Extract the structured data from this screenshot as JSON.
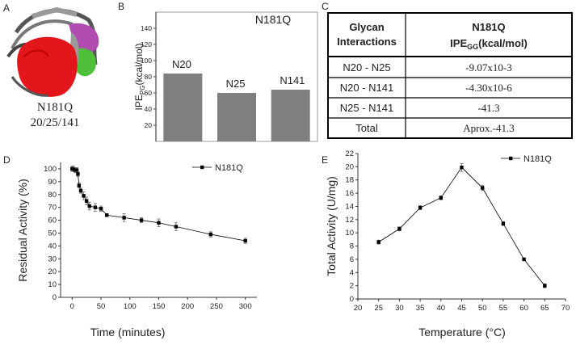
{
  "figure_a": {
    "panel_label": "A",
    "label_line1": "N181Q",
    "label_line2": "20/25/141"
  },
  "table_c": {
    "panel_label": "C",
    "header": {
      "col1_line1": "Glycan",
      "col1_line2": "Interactions",
      "col2_title": "N181Q",
      "col2_main": "IPE",
      "col2_sub": "GG",
      "col2_unit": "(kcal/mol)"
    },
    "rows": [
      [
        "N20 - N25",
        "-9.07x10-3"
      ],
      [
        "N20 - N141",
        "-4.30x10-6"
      ],
      [
        "N25 - N141",
        "-41.3"
      ],
      [
        "Total",
        "Aprox.-41.3"
      ]
    ]
  },
  "chart_data": [
    {
      "type": "bar",
      "panel_label": "B",
      "title": "N181Q",
      "y_label": {
        "main": "IPE",
        "sub": "PG",
        "unit": "(kcal/mol)"
      },
      "categories": [
        "N20",
        "N25",
        "N141"
      ],
      "values": [
        84,
        60,
        64
      ],
      "color": "#7f7f7f",
      "ylim": [
        0,
        160
      ],
      "yticks": [
        20,
        40,
        60,
        80,
        100,
        120,
        140
      ]
    },
    {
      "type": "line",
      "panel_label": "D",
      "x_label": "Time (minutes)",
      "y_label": "Residual Activity (%)",
      "x": [
        0,
        2,
        5,
        8,
        10,
        12,
        15,
        20,
        25,
        30,
        40,
        50,
        60,
        90,
        120,
        150,
        180,
        240,
        300
      ],
      "series": [
        {
          "name": "N181Q",
          "color": "#000000",
          "values": [
            100,
            100,
            99,
            99,
            96,
            87,
            83,
            79,
            75,
            71,
            70,
            69,
            64,
            62,
            60,
            58,
            55,
            49,
            44
          ],
          "errors": [
            2,
            2,
            2,
            2,
            2,
            2,
            2,
            3,
            3,
            3,
            3,
            2,
            1,
            3,
            2,
            3,
            3,
            2,
            2
          ]
        }
      ],
      "xlim": [
        -20,
        320
      ],
      "xticks": [
        0,
        50,
        100,
        150,
        200,
        250,
        300
      ],
      "ylim": [
        0,
        105
      ],
      "yticks": [
        0,
        10,
        20,
        30,
        40,
        50,
        60,
        70,
        80,
        90,
        100
      ],
      "legend": "upper right"
    },
    {
      "type": "line",
      "panel_label": "E",
      "x_label": "Temperature (°C)",
      "y_label": "Total Activity (U/mg)",
      "x": [
        25,
        30,
        35,
        40,
        45,
        50,
        55,
        60,
        65
      ],
      "series": [
        {
          "name": "N181Q",
          "color": "#000000",
          "values": [
            8.6,
            10.6,
            13.8,
            15.3,
            19.9,
            16.8,
            11.4,
            6.0,
            2.0
          ],
          "errors": [
            0.3,
            0.3,
            0.3,
            0.3,
            0.6,
            0.4,
            0.3,
            0.2,
            0.3
          ]
        }
      ],
      "xlim": [
        20,
        70
      ],
      "xticks": [
        20,
        25,
        30,
        35,
        40,
        45,
        50,
        55,
        60,
        65,
        70
      ],
      "ylim": [
        0,
        22
      ],
      "yticks": [
        0,
        2,
        4,
        6,
        8,
        10,
        12,
        14,
        16,
        18,
        20,
        22
      ],
      "legend": "upper right"
    }
  ]
}
